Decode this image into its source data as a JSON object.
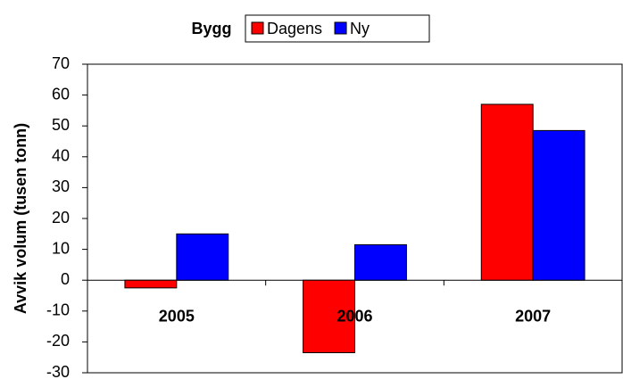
{
  "chart_data": {
    "type": "bar",
    "title": "Bygg",
    "y_label": "Avvik volum (tusen tonn)",
    "categories": [
      "2005",
      "2006",
      "2007"
    ],
    "series": [
      {
        "name": "Dagens",
        "color": "#ff0000",
        "values": [
          -2.5,
          -23.5,
          57
        ]
      },
      {
        "name": "Ny",
        "color": "#0000ff",
        "values": [
          15,
          11.5,
          48.5
        ]
      }
    ],
    "ylim": [
      -30,
      70
    ],
    "yticks": [
      -30,
      -20,
      -10,
      0,
      10,
      20,
      30,
      40,
      50,
      60,
      70
    ],
    "grid": false
  }
}
